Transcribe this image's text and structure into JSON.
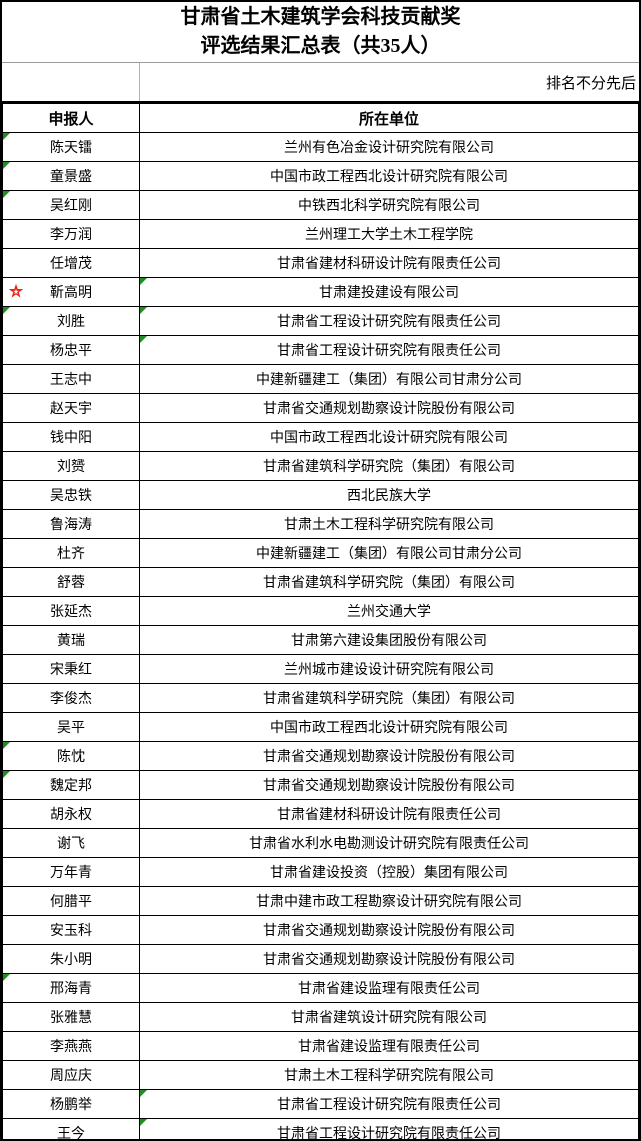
{
  "title": {
    "line1": "甘肃省土木建筑学会科技贡献奖",
    "line2": "评选结果汇总表（共35人）"
  },
  "note": "排名不分先后",
  "table": {
    "headers": {
      "applicant": "申报人",
      "organization": "所在单位"
    },
    "rows": [
      {
        "name": "陈天镭",
        "org": "兰州有色冶金设计研究院有限公司",
        "name_marker": true
      },
      {
        "name": "童景盛",
        "org": "中国市政工程西北设计研究院有限公司",
        "name_marker": true
      },
      {
        "name": "吴红刚",
        "org": "中铁西北科学研究院有限公司",
        "name_marker": true
      },
      {
        "name": "李万润",
        "org": "兰州理工大学土木工程学院"
      },
      {
        "name": "任增茂",
        "org": "甘肃省建材科研设计院有限责任公司"
      },
      {
        "name": "靳高明",
        "org": "甘肃建投建设有限公司",
        "star": true,
        "org_marker": true
      },
      {
        "name": "刘胜",
        "org": "甘肃省工程设计研究院有限责任公司",
        "name_marker": true,
        "org_marker": true
      },
      {
        "name": "杨忠平",
        "org": "甘肃省工程设计研究院有限责任公司",
        "org_marker": true
      },
      {
        "name": "王志中",
        "org": "中建新疆建工（集团）有限公司甘肃分公司"
      },
      {
        "name": "赵天宇",
        "org": "甘肃省交通规划勘察设计院股份有限公司"
      },
      {
        "name": "钱中阳",
        "org": "中国市政工程西北设计研究院有限公司"
      },
      {
        "name": "刘赟",
        "org": "甘肃省建筑科学研究院（集团）有限公司"
      },
      {
        "name": "吴忠铁",
        "org": "西北民族大学"
      },
      {
        "name": "鲁海涛",
        "org": "甘肃土木工程科学研究院有限公司"
      },
      {
        "name": "杜齐",
        "org": "中建新疆建工（集团）有限公司甘肃分公司"
      },
      {
        "name": "舒蓉",
        "org": "甘肃省建筑科学研究院（集团）有限公司"
      },
      {
        "name": "张延杰",
        "org": "兰州交通大学"
      },
      {
        "name": "黄瑞",
        "org": "甘肃第六建设集团股份有限公司"
      },
      {
        "name": "宋秉红",
        "org": "兰州城市建设设计研究院有限公司"
      },
      {
        "name": "李俊杰",
        "org": "甘肃省建筑科学研究院（集团）有限公司"
      },
      {
        "name": "吴平",
        "org": "中国市政工程西北设计研究院有限公司"
      },
      {
        "name": "陈忱",
        "org": "甘肃省交通规划勘察设计院股份有限公司",
        "name_marker": true
      },
      {
        "name": "魏定邦",
        "org": "甘肃省交通规划勘察设计院股份有限公司",
        "name_marker": true
      },
      {
        "name": "胡永权",
        "org": "甘肃省建材科研设计院有限责任公司"
      },
      {
        "name": "谢飞",
        "org": "甘肃省水利水电勘测设计研究院有限责任公司"
      },
      {
        "name": "万年青",
        "org": "甘肃省建设投资（控股）集团有限公司"
      },
      {
        "name": "何腊平",
        "org": "甘肃中建市政工程勘察设计研究院有限公司"
      },
      {
        "name": "安玉科",
        "org": "甘肃省交通规划勘察设计院股份有限公司"
      },
      {
        "name": "朱小明",
        "org": "甘肃省交通规划勘察设计院股份有限公司"
      },
      {
        "name": "邢海青",
        "org": "甘肃省建设监理有限责任公司",
        "name_marker": true
      },
      {
        "name": "张雅慧",
        "org": "甘肃省建筑设计研究院有限公司"
      },
      {
        "name": "李燕燕",
        "org": "甘肃省建设监理有限责任公司"
      },
      {
        "name": "周应庆",
        "org": "甘肃土木工程科学研究院有限公司"
      },
      {
        "name": "杨鹏举",
        "org": "甘肃省工程设计研究院有限责任公司",
        "org_marker": true
      },
      {
        "name": "王今",
        "org": "甘肃省工程设计研究院有限责任公司",
        "org_marker": true
      }
    ]
  },
  "icons": {
    "star": "★",
    "comment_marker": "green-corner-triangle"
  },
  "colors": {
    "comment_marker": "#1f8f1f",
    "star_red": "#e8231a",
    "grid": "#000000",
    "light_grid": "#b4b4b4"
  }
}
